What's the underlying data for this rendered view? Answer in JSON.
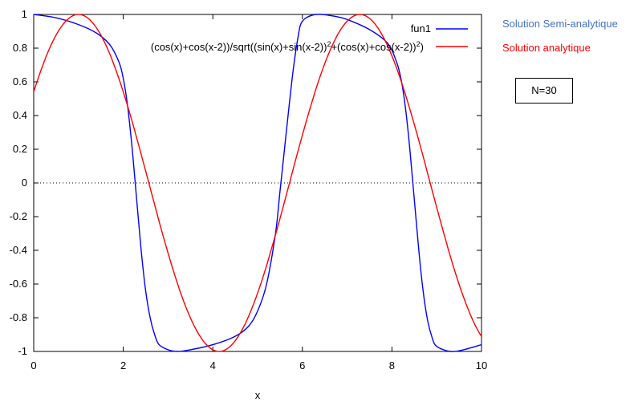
{
  "chart_data": {
    "type": "line",
    "xlabel": "x",
    "ylabel": "",
    "xlim": [
      0,
      10
    ],
    "ylim": [
      -1,
      1
    ],
    "xticks": [
      0,
      2,
      4,
      6,
      8,
      10
    ],
    "yticks": [
      -1,
      -0.8,
      -0.6,
      -0.4,
      -0.2,
      0,
      0.2,
      0.4,
      0.6,
      0.8,
      1
    ],
    "xtick_labels": [
      "0",
      "2",
      "4",
      "6",
      "8",
      "10"
    ],
    "ytick_labels": [
      "-1",
      "-0.8",
      "-0.6",
      "-0.4",
      "-0.2",
      "0",
      "0.2",
      "0.4",
      "0.6",
      "0.8",
      "1"
    ],
    "zero_line": "dotted",
    "legend_position": "top-right",
    "series": [
      {
        "name": "fun1",
        "color": "#0000ff",
        "x": [
          0,
          0.5,
          1.0,
          1.4,
          1.7,
          1.9,
          2.0,
          2.1,
          2.2,
          2.3,
          2.4,
          2.5,
          2.6,
          2.7,
          2.8,
          3.0,
          3.2,
          3.5,
          4.0,
          4.5,
          4.8,
          5.0,
          5.2,
          5.4,
          5.5,
          5.6,
          5.7,
          5.8,
          5.9,
          6.0,
          6.3,
          6.7,
          7.0,
          7.5,
          7.9,
          8.1,
          8.2,
          8.3,
          8.4,
          8.5,
          8.6,
          8.7,
          8.8,
          8.9,
          9.0,
          9.3,
          9.6,
          10.0
        ],
        "values": [
          1.0,
          0.98,
          0.94,
          0.89,
          0.82,
          0.72,
          0.62,
          0.45,
          0.2,
          -0.1,
          -0.4,
          -0.64,
          -0.8,
          -0.9,
          -0.96,
          -0.99,
          -1.0,
          -0.99,
          -0.96,
          -0.91,
          -0.85,
          -0.76,
          -0.6,
          -0.3,
          -0.05,
          0.2,
          0.45,
          0.68,
          0.86,
          0.96,
          1.0,
          0.99,
          0.97,
          0.91,
          0.83,
          0.72,
          0.62,
          0.45,
          0.2,
          -0.1,
          -0.4,
          -0.65,
          -0.82,
          -0.92,
          -0.97,
          -1.0,
          -0.99,
          -0.96
        ]
      },
      {
        "name": "(cos(x)+cos(x-2))/sqrt((sin(x)+sin(x-2))²+(cos(x)+cos(x-2))²)",
        "color": "#ff0000",
        "formula": "cos(x - 1)",
        "x_range": [
          0,
          10
        ]
      }
    ]
  },
  "legend": {
    "entries": [
      {
        "text": "fun1",
        "color": "#0000ff"
      },
      {
        "text_main": "(cos(x)+cos(x-2))/sqrt((sin(x)+sin(x-2))",
        "sup1": "2",
        "text_mid": "+(cos(x)+cos(x-2))",
        "sup2": "2",
        "text_end": ")",
        "color": "#ff0000"
      }
    ]
  },
  "annotations": {
    "semi": {
      "text": "Solution Semi-analytique",
      "color": "#4472c4"
    },
    "analytic": {
      "text": "Solution analytique",
      "color": "#ff0000"
    },
    "n_label": "N=30"
  }
}
